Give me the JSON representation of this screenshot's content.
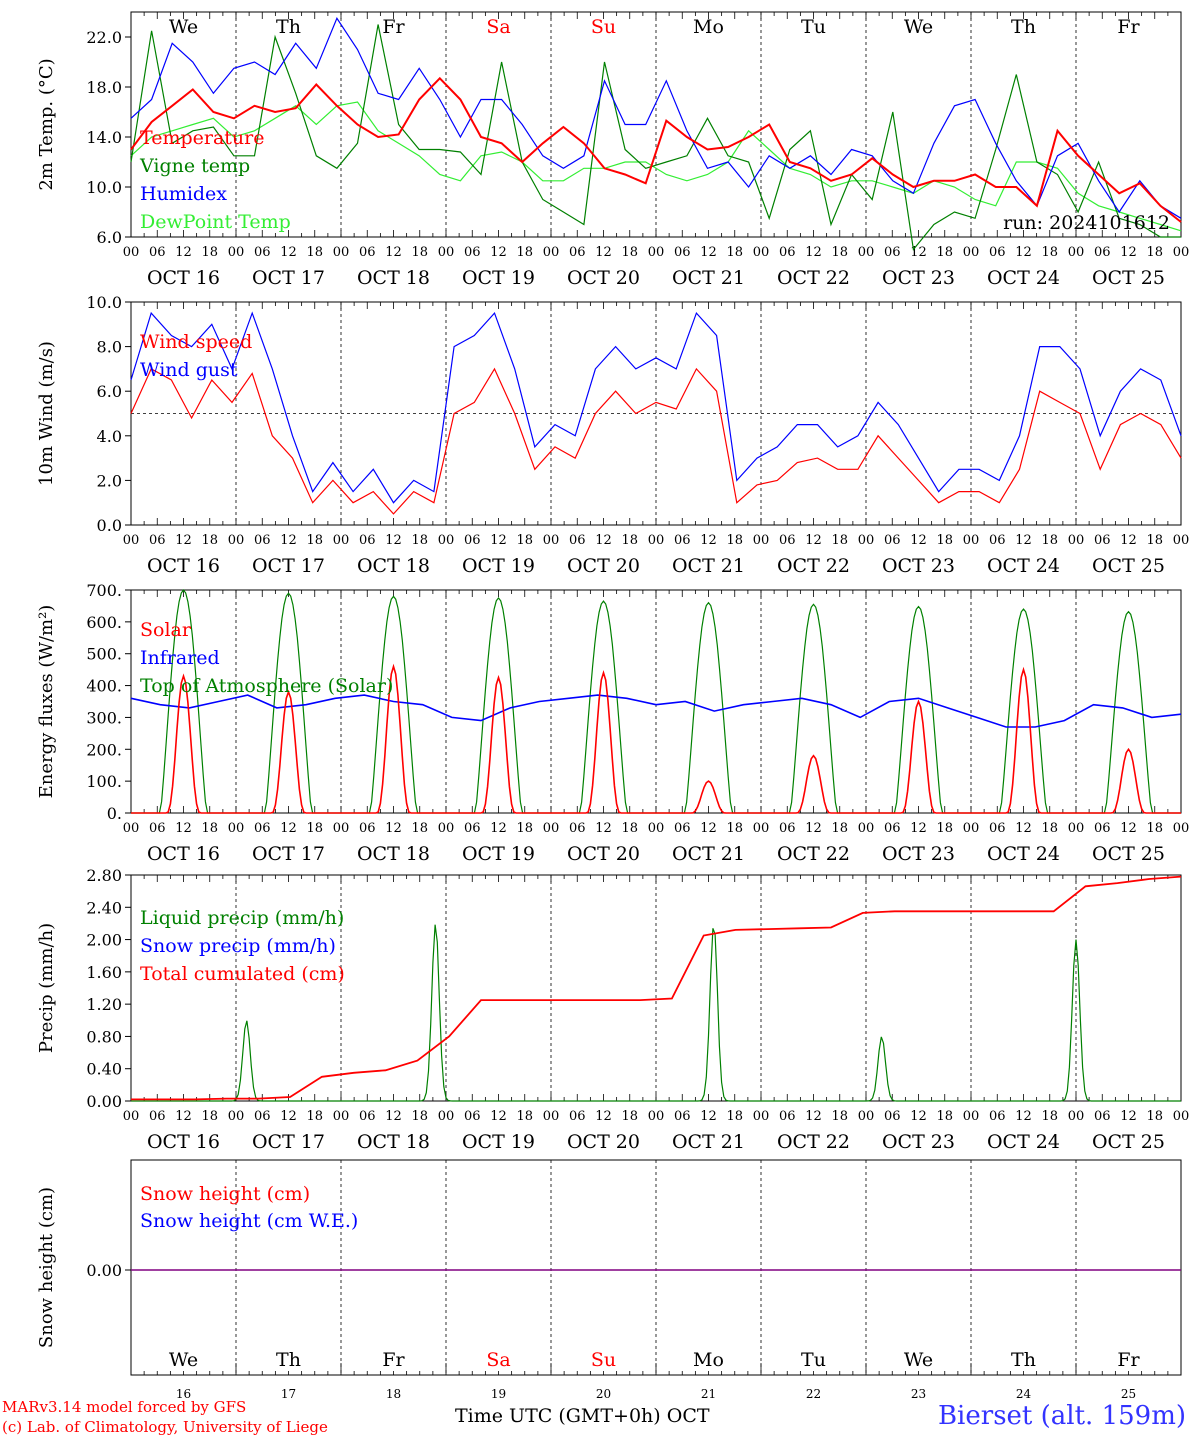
{
  "days": {
    "weekday": [
      "We",
      "Th",
      "Fr",
      "Sa",
      "Su",
      "Mo",
      "Tu",
      "We",
      "Th",
      "Fr"
    ],
    "weekend_index": [
      3,
      4
    ],
    "date_labels": [
      "OCT 16",
      "OCT 17",
      "OCT 18",
      "OCT 19",
      "OCT 20",
      "OCT 21",
      "OCT 22",
      "OCT 23",
      "OCT 24",
      "OCT 25"
    ],
    "day_numbers": [
      "16",
      "17",
      "18",
      "19",
      "20",
      "21",
      "22",
      "23",
      "24",
      "25"
    ],
    "hour_ticks": [
      "00",
      "06",
      "12",
      "18"
    ],
    "final_tick": "00"
  },
  "colors": {
    "red": "#ff0000",
    "green": "#008000",
    "blue": "#0000ff",
    "lightgreen": "#33ee33",
    "purple": "#800080"
  },
  "footer": {
    "model_line": "MARv3.14 model forced by GFS",
    "lab_line": "(c) Lab. of Climatology, University of Liege",
    "time_axis_label": "Time UTC (GMT+0h)",
    "month_label": "OCT",
    "station": "Bierset (alt. 159m)"
  },
  "chart_data": [
    {
      "id": "temperature",
      "type": "line",
      "ylabel": "2m Temp. (°C)",
      "ylim": [
        6.0,
        24.0
      ],
      "yticks": [
        "6.0",
        "10.0",
        "14.0",
        "18.0",
        "22.0"
      ],
      "run_label": "run: 2024101612",
      "series": [
        {
          "name": "Temperature",
          "color": "red",
          "values": [
            13.0,
            15.2,
            16.5,
            17.8,
            16.0,
            15.5,
            16.5,
            16.0,
            16.3,
            18.2,
            16.5,
            15.0,
            14.0,
            14.2,
            17.0,
            18.7,
            17.0,
            14.0,
            13.5,
            12.0,
            13.5,
            14.8,
            13.5,
            11.5,
            11.0,
            10.3,
            15.3,
            14.0,
            13.0,
            13.2,
            14.0,
            15.0,
            12.0,
            11.5,
            10.5,
            11.0,
            12.3,
            11.0,
            10.0,
            10.5,
            10.5,
            11.0,
            10.0,
            10.0,
            8.5,
            14.5,
            12.5,
            11.0,
            9.5,
            10.3,
            8.5,
            7.2
          ]
        },
        {
          "name": "Vigne temp",
          "color": "green",
          "values": [
            12.0,
            22.5,
            13.5,
            14.5,
            14.8,
            12.5,
            12.5,
            22.0,
            17.5,
            12.5,
            11.5,
            13.5,
            23.0,
            15.0,
            13.0,
            13.0,
            12.8,
            11.0,
            20.0,
            12.0,
            9.0,
            8.0,
            7.0,
            20.0,
            13.0,
            11.5,
            12.0,
            12.5,
            15.5,
            12.5,
            12.0,
            7.5,
            13.0,
            14.5,
            7.0,
            11.0,
            9.0,
            16.0,
            5.0,
            7.0,
            8.0,
            7.5,
            13.0,
            19.0,
            12.0,
            11.0,
            8.0,
            12.0,
            7.5,
            7.0,
            6.0,
            6.0
          ]
        },
        {
          "name": "Humidex",
          "color": "blue",
          "values": [
            15.5,
            17.0,
            21.5,
            20.0,
            17.5,
            19.5,
            20.0,
            19.0,
            21.5,
            19.5,
            23.5,
            21.0,
            17.5,
            17.0,
            19.5,
            17.0,
            14.0,
            17.0,
            17.0,
            15.0,
            12.5,
            11.5,
            12.5,
            18.5,
            15.0,
            15.0,
            18.5,
            14.5,
            11.5,
            12.0,
            10.0,
            12.5,
            11.5,
            12.5,
            11.0,
            13.0,
            12.5,
            10.5,
            9.5,
            13.5,
            16.5,
            17.0,
            13.5,
            10.5,
            8.5,
            12.5,
            13.5,
            10.5,
            8.0,
            10.5,
            8.5,
            7.5
          ]
        },
        {
          "name": "DewPoint Temp",
          "color": "lightgreen",
          "values": [
            12.5,
            14.0,
            14.5,
            15.0,
            15.5,
            14.0,
            14.5,
            15.5,
            16.5,
            15.0,
            16.5,
            16.8,
            14.5,
            13.5,
            12.5,
            11.0,
            10.5,
            12.5,
            12.8,
            12.0,
            10.5,
            10.5,
            11.5,
            11.5,
            12.0,
            12.0,
            11.0,
            10.5,
            11.0,
            12.0,
            14.5,
            13.0,
            11.5,
            11.0,
            10.0,
            10.5,
            10.5,
            10.0,
            9.5,
            10.5,
            10.0,
            9.0,
            8.5,
            12.0,
            12.0,
            11.5,
            9.5,
            8.5,
            8.0,
            7.5,
            7.0,
            6.5
          ]
        }
      ]
    },
    {
      "id": "wind",
      "type": "line",
      "ylabel": "10m Wind (m/s)",
      "ylim": [
        0.0,
        10.0
      ],
      "yticks": [
        "0.0",
        "2.0",
        "4.0",
        "6.0",
        "8.0",
        "10.0"
      ],
      "reference_line": 5.0,
      "series": [
        {
          "name": "Wind speed",
          "color": "red",
          "values": [
            5.0,
            7.0,
            6.5,
            4.8,
            6.5,
            5.5,
            6.8,
            4.0,
            3.0,
            1.0,
            2.0,
            1.0,
            1.5,
            0.5,
            1.5,
            1.0,
            5.0,
            5.5,
            7.0,
            5.0,
            2.5,
            3.5,
            3.0,
            5.0,
            6.0,
            5.0,
            5.5,
            5.2,
            7.0,
            6.0,
            1.0,
            1.8,
            2.0,
            2.8,
            3.0,
            2.5,
            2.5,
            4.0,
            3.0,
            2.0,
            1.0,
            1.5,
            1.5,
            1.0,
            2.5,
            6.0,
            5.5,
            5.0,
            2.5,
            4.5,
            5.0,
            4.5,
            3.0
          ]
        },
        {
          "name": "Wind gust",
          "color": "blue",
          "values": [
            6.5,
            9.5,
            8.5,
            8.0,
            9.0,
            7.0,
            9.5,
            7.0,
            4.0,
            1.5,
            2.8,
            1.5,
            2.5,
            1.0,
            2.0,
            1.5,
            8.0,
            8.5,
            9.5,
            7.0,
            3.5,
            4.5,
            4.0,
            7.0,
            8.0,
            7.0,
            7.5,
            7.0,
            9.5,
            8.5,
            2.0,
            3.0,
            3.5,
            4.5,
            4.5,
            3.5,
            4.0,
            5.5,
            4.5,
            3.0,
            1.5,
            2.5,
            2.5,
            2.0,
            4.0,
            8.0,
            8.0,
            7.0,
            4.0,
            6.0,
            7.0,
            6.5,
            4.0
          ]
        }
      ]
    },
    {
      "id": "energy",
      "type": "line",
      "ylabel": "Energy fluxes (W/m²)",
      "ylim": [
        0,
        700
      ],
      "yticks": [
        "0.",
        "100.",
        "200.",
        "300.",
        "400.",
        "500.",
        "600.",
        "700."
      ],
      "series": [
        {
          "name": "Solar",
          "color": "red",
          "daily_peak": [
            430,
            380,
            460,
            425,
            440,
            100,
            180,
            350,
            450,
            200
          ]
        },
        {
          "name": "Infrared",
          "color": "blue",
          "values": [
            360,
            340,
            330,
            350,
            370,
            330,
            340,
            360,
            370,
            350,
            340,
            300,
            290,
            330,
            350,
            360,
            370,
            360,
            340,
            350,
            320,
            340,
            350,
            360,
            340,
            300,
            350,
            360,
            330,
            300,
            270,
            270,
            290,
            340,
            330,
            300,
            310
          ]
        },
        {
          "name": "Top of Atmosphere (Solar)",
          "color": "green",
          "daily_peak": [
            700,
            690,
            680,
            675,
            665,
            660,
            655,
            648,
            640,
            632
          ]
        }
      ]
    },
    {
      "id": "precip",
      "type": "line",
      "ylabel": "Precip (mm/h)",
      "ylim": [
        0.0,
        2.8
      ],
      "yticks": [
        "0.00",
        "0.40",
        "0.80",
        "1.20",
        "1.60",
        "2.00",
        "2.40",
        "2.80"
      ],
      "series": [
        {
          "name": "Liquid precip (mm/h)",
          "color": "green",
          "events": [
            [
              1.1,
              1.0
            ],
            [
              2.9,
              2.2
            ],
            [
              5.55,
              2.2
            ],
            [
              7.15,
              0.8
            ],
            [
              9.0,
              2.0
            ]
          ]
        },
        {
          "name": "Snow precip (mm/h)",
          "color": "blue",
          "values": []
        },
        {
          "name": "Total cumulated (cm)",
          "color": "red",
          "values": [
            0.02,
            0.02,
            0.02,
            0.03,
            0.03,
            0.05,
            0.3,
            0.35,
            0.38,
            0.5,
            0.8,
            1.25,
            1.25,
            1.25,
            1.25,
            1.25,
            1.25,
            1.27,
            2.05,
            2.12,
            2.13,
            2.14,
            2.15,
            2.33,
            2.35,
            2.35,
            2.35,
            2.35,
            2.35,
            2.35,
            2.66,
            2.7,
            2.75,
            2.78
          ]
        }
      ]
    },
    {
      "id": "snow",
      "type": "line",
      "ylabel": "Snow height (cm)",
      "yticks": [
        "0.00"
      ],
      "series": [
        {
          "name": "Snow height (cm)",
          "color": "red",
          "values": [
            0,
            0
          ]
        },
        {
          "name": "Snow height (cm W.E.)",
          "color": "blue",
          "values": [
            0,
            0
          ]
        }
      ]
    }
  ]
}
